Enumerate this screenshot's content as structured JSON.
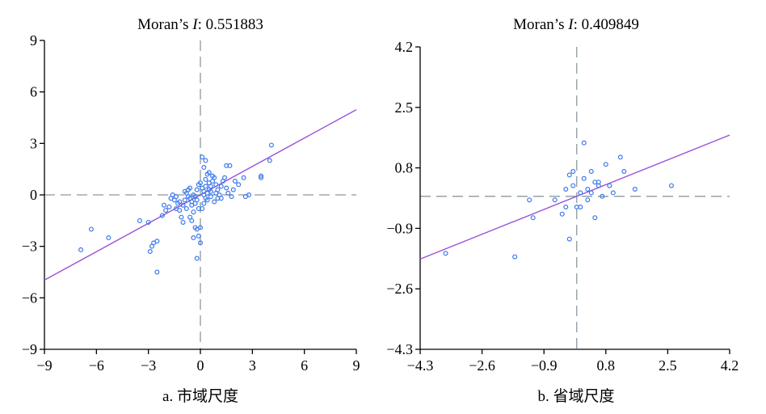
{
  "colors": {
    "points": "#3a78ea",
    "fit_line": "#9a52d8",
    "reference_lines": "#8a9aa0"
  },
  "chart_data": [
    {
      "type": "scatter",
      "title_prefix": "Moran’s ",
      "title_italic": "I",
      "title_suffix": ": 0.551883",
      "caption": "a. 市域尺度",
      "xlim": [
        -9,
        9
      ],
      "ylim": [
        -9,
        9
      ],
      "xticks": [
        -9,
        -6,
        -3,
        0,
        3,
        6,
        9
      ],
      "yticks": [
        -9,
        -6,
        -3,
        0,
        3,
        6,
        9
      ],
      "tick_labels_x": [
        "−9",
        "−6",
        "−3",
        "0",
        "3",
        "6",
        "9"
      ],
      "tick_labels_y": [
        "−9",
        "−6",
        "−3",
        "0",
        "3",
        "6",
        "9"
      ],
      "fit_slope": 0.551883,
      "reference_lines": {
        "x": 0,
        "y": 0
      },
      "points": [
        [
          -6.9,
          -3.2
        ],
        [
          -6.3,
          -2.0
        ],
        [
          -5.3,
          -2.5
        ],
        [
          -3.5,
          -1.5
        ],
        [
          -3.0,
          -1.6
        ],
        [
          -2.8,
          -3.0
        ],
        [
          -2.9,
          -3.3
        ],
        [
          -2.5,
          -4.5
        ],
        [
          -2.7,
          -2.8
        ],
        [
          -2.5,
          -2.7
        ],
        [
          -2.2,
          -1.2
        ],
        [
          -2.0,
          -0.9
        ],
        [
          -2.1,
          -0.6
        ],
        [
          -1.8,
          -0.7
        ],
        [
          -1.5,
          -0.3
        ],
        [
          -1.4,
          -0.1
        ],
        [
          -1.6,
          0.0
        ],
        [
          -1.3,
          -0.5
        ],
        [
          -1.2,
          -0.9
        ],
        [
          -1.1,
          -1.3
        ],
        [
          -1.0,
          -0.6
        ],
        [
          -0.9,
          -0.3
        ],
        [
          -0.8,
          0.1
        ],
        [
          -0.7,
          0.3
        ],
        [
          -0.6,
          -0.2
        ],
        [
          -0.5,
          -0.6
        ],
        [
          -0.4,
          -1.0
        ],
        [
          -0.3,
          -0.1
        ],
        [
          -0.2,
          0.3
        ],
        [
          -0.1,
          0.6
        ],
        [
          -1.7,
          -0.2
        ],
        [
          -1.2,
          -0.4
        ],
        [
          -0.9,
          0.2
        ],
        [
          -0.6,
          0.4
        ],
        [
          -0.5,
          -0.4
        ],
        [
          -0.4,
          0.0
        ],
        [
          -0.3,
          -0.5
        ],
        [
          -0.2,
          -0.3
        ],
        [
          -0.1,
          -0.8
        ],
        [
          0.0,
          -1.9
        ],
        [
          -0.2,
          -2.0
        ],
        [
          -0.3,
          -1.9
        ],
        [
          -0.1,
          -2.4
        ],
        [
          0.0,
          -2.8
        ],
        [
          -0.4,
          -2.5
        ],
        [
          -0.2,
          -3.7
        ],
        [
          -1.0,
          -1.6
        ],
        [
          -0.6,
          -1.3
        ],
        [
          -0.5,
          -1.5
        ],
        [
          0.1,
          -0.8
        ],
        [
          0.2,
          -0.5
        ],
        [
          0.3,
          -0.2
        ],
        [
          0.4,
          0.1
        ],
        [
          0.5,
          0.3
        ],
        [
          0.6,
          0.5
        ],
        [
          0.7,
          0.8
        ],
        [
          0.8,
          1.0
        ],
        [
          0.9,
          0.6
        ],
        [
          1.0,
          0.3
        ],
        [
          1.1,
          0.0
        ],
        [
          1.2,
          -0.2
        ],
        [
          0.3,
          0.9
        ],
        [
          0.4,
          1.2
        ],
        [
          0.2,
          1.6
        ],
        [
          0.3,
          2.0
        ],
        [
          0.1,
          2.2
        ],
        [
          0.5,
          1.3
        ],
        [
          0.7,
          1.1
        ],
        [
          1.3,
          0.8
        ],
        [
          1.5,
          0.4
        ],
        [
          1.6,
          0.1
        ],
        [
          1.8,
          -0.1
        ],
        [
          1.9,
          0.3
        ],
        [
          2.0,
          0.8
        ],
        [
          2.2,
          0.6
        ],
        [
          2.5,
          1.0
        ],
        [
          1.5,
          1.7
        ],
        [
          1.7,
          1.7
        ],
        [
          1.4,
          1.0
        ],
        [
          0.6,
          -0.1
        ],
        [
          0.8,
          -0.4
        ],
        [
          1.0,
          -0.2
        ],
        [
          0.2,
          0.0
        ],
        [
          0.1,
          0.4
        ],
        [
          0.0,
          0.7
        ],
        [
          0.3,
          0.5
        ],
        [
          0.5,
          0.7
        ],
        [
          0.6,
          0.2
        ],
        [
          0.9,
          0.1
        ],
        [
          1.2,
          0.5
        ],
        [
          3.5,
          1.1
        ],
        [
          3.5,
          1.0
        ],
        [
          4.1,
          2.9
        ],
        [
          4.0,
          2.0
        ],
        [
          2.8,
          0.0
        ],
        [
          2.6,
          -0.1
        ],
        [
          -0.8,
          -0.8
        ],
        [
          -1.4,
          -0.8
        ],
        [
          -0.7,
          -0.1
        ],
        [
          0.2,
          0.2
        ],
        [
          0.4,
          -0.3
        ]
      ]
    },
    {
      "type": "scatter",
      "title_prefix": "Moran’s ",
      "title_italic": "I",
      "title_suffix": ": 0.409849",
      "caption": "b. 省域尺度",
      "xlim": [
        -4.3,
        4.2
      ],
      "ylim": [
        -4.3,
        4.2
      ],
      "xticks": [
        -4.3,
        -2.6,
        -0.9,
        0.8,
        2.5,
        4.2
      ],
      "yticks": [
        -4.3,
        -2.6,
        -0.9,
        0.8,
        2.5,
        4.2
      ],
      "tick_labels_x": [
        "−4.3",
        "−2.6",
        "−0.9",
        "0.8",
        "2.5",
        "4.2"
      ],
      "tick_labels_y": [
        "−4.3",
        "−2.6",
        "−0.9",
        "0.8",
        "2.5",
        "4.2"
      ],
      "fit_slope": 0.409849,
      "reference_lines": {
        "x": 0,
        "y": 0
      },
      "points": [
        [
          -3.6,
          -1.6
        ],
        [
          -1.7,
          -1.7
        ],
        [
          -1.3,
          -0.1
        ],
        [
          -1.2,
          -0.6
        ],
        [
          -0.6,
          -0.1
        ],
        [
          -0.4,
          -0.5
        ],
        [
          -0.3,
          0.2
        ],
        [
          -0.2,
          0.6
        ],
        [
          -0.1,
          0.3
        ],
        [
          0.0,
          -0.3
        ],
        [
          0.1,
          0.1
        ],
        [
          0.2,
          0.5
        ],
        [
          0.3,
          0.2
        ],
        [
          0.4,
          0.7
        ],
        [
          0.5,
          0.4
        ],
        [
          0.6,
          0.3
        ],
        [
          0.7,
          0.0
        ],
        [
          0.8,
          0.9
        ],
        [
          0.9,
          0.3
        ],
        [
          1.0,
          0.1
        ],
        [
          1.2,
          1.1
        ],
        [
          1.3,
          0.7
        ],
        [
          1.6,
          0.2
        ],
        [
          2.6,
          0.3
        ],
        [
          -0.2,
          -1.2
        ],
        [
          0.5,
          -0.6
        ],
        [
          0.2,
          1.5
        ],
        [
          -0.1,
          0.7
        ],
        [
          0.3,
          -0.1
        ],
        [
          0.1,
          -0.3
        ],
        [
          0.4,
          0.1
        ],
        [
          -0.3,
          -0.3
        ],
        [
          0.6,
          0.4
        ]
      ]
    }
  ]
}
